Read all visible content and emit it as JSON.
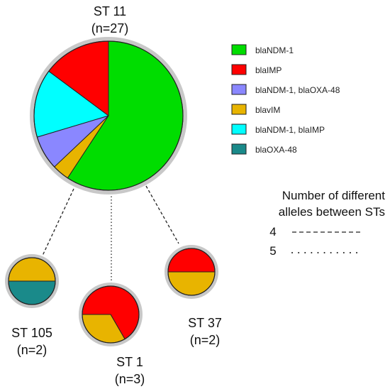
{
  "colors": {
    "blaNDM-1": "#00dd00",
    "blaIMP": "#ff0000",
    "blaNDM-1, blaOXA-48": "#8a87ff",
    "blaVIM": "#e8b400",
    "blaNDM-1, blaIMP": "#00ffff",
    "blaOXA-48": "#1a8a8a",
    "ring": "#c8c8c8",
    "outline": "#222222"
  },
  "legend": [
    {
      "label": "blaNDM-1",
      "key": "blaNDM-1"
    },
    {
      "label": "blaIMP",
      "key": "blaIMP"
    },
    {
      "label": "blaNDM-1, blaOXA-48",
      "key": "blaNDM-1, blaOXA-48"
    },
    {
      "label": "blavIM",
      "key": "blaVIM"
    },
    {
      "label": "blaNDM-1, blaIMP",
      "key": "blaNDM-1, blaIMP"
    },
    {
      "label": "blaOXA-48",
      "key": "blaOXA-48"
    }
  ],
  "nodes": [
    {
      "id": "st11",
      "name": "ST 11",
      "count": "(n=27)",
      "slices": [
        {
          "key": "blaNDM-1",
          "value": 16
        },
        {
          "key": "blaVIM",
          "value": 1
        },
        {
          "key": "blaNDM-1, blaOXA-48",
          "value": 2
        },
        {
          "key": "blaNDM-1, blaIMP",
          "value": 4
        },
        {
          "key": "blaIMP",
          "value": 4
        }
      ]
    },
    {
      "id": "st105",
      "name": "ST 105",
      "count": "(n=2)",
      "slices": [
        {
          "key": "blaVIM",
          "value": 1
        },
        {
          "key": "blaOXA-48",
          "value": 1
        }
      ]
    },
    {
      "id": "st1",
      "name": "ST 1",
      "count": "(n=3)",
      "slices": [
        {
          "key": "blaIMP",
          "value": 2
        },
        {
          "key": "blaVIM",
          "value": 1
        }
      ]
    },
    {
      "id": "st37",
      "name": "ST 37",
      "count": "(n=2)",
      "slices": [
        {
          "key": "blaIMP",
          "value": 1
        },
        {
          "key": "blaVIM",
          "value": 1
        }
      ]
    }
  ],
  "edges": [
    {
      "from": "st11",
      "to": "st105",
      "alleles": 4
    },
    {
      "from": "st11",
      "to": "st1",
      "alleles": 5
    },
    {
      "from": "st11",
      "to": "st37",
      "alleles": 4
    }
  ],
  "distance_key": {
    "title_line1": "Number of different",
    "title_line2": "alleles between STs",
    "items": [
      {
        "value": "4",
        "alleles": 4
      },
      {
        "value": "5",
        "alleles": 5
      }
    ]
  }
}
